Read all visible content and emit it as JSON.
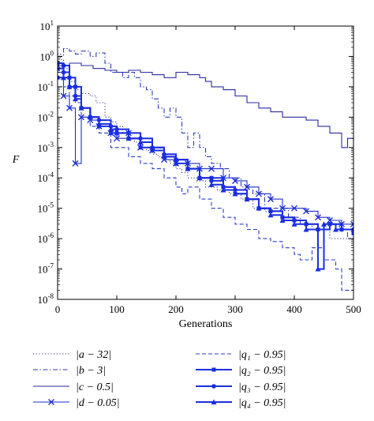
{
  "chart_data": {
    "type": "line",
    "title": "",
    "xlabel": "Generations",
    "ylabel": "F",
    "xlim": [
      0,
      500
    ],
    "ylim": [
      1e-08,
      10
    ],
    "yscale": "log",
    "x_ticks": [
      "0",
      "100",
      "200",
      "300",
      "400",
      "500"
    ],
    "y_ticks": [
      {
        "base": "10",
        "exp": "1"
      },
      {
        "base": "10",
        "exp": "0"
      },
      {
        "base": "10",
        "exp": "-1"
      },
      {
        "base": "10",
        "exp": "-2"
      },
      {
        "base": "10",
        "exp": "-3"
      },
      {
        "base": "10",
        "exp": "-4"
      },
      {
        "base": "10",
        "exp": "-5"
      },
      {
        "base": "10",
        "exp": "-6"
      },
      {
        "base": "10",
        "exp": "-7"
      },
      {
        "base": "10",
        "exp": "-8"
      }
    ],
    "grid": false,
    "legend_position": "bottom",
    "series": [
      {
        "name": "|a − 32|",
        "style": "dotted",
        "marker": "none",
        "color": "#3a3a8c",
        "points": [
          [
            0,
            1.2
          ],
          [
            5,
            0.8
          ],
          [
            10,
            0.4
          ],
          [
            20,
            0.15
          ],
          [
            30,
            0.08
          ],
          [
            40,
            0.06
          ],
          [
            55,
            0.05
          ],
          [
            65,
            0.03
          ],
          [
            80,
            0.01
          ],
          [
            90,
            0.007
          ],
          [
            100,
            0.005
          ],
          [
            110,
            0.003
          ],
          [
            120,
            0.002
          ],
          [
            130,
            0.0015
          ],
          [
            140,
            0.001
          ],
          [
            150,
            0.0008
          ],
          [
            160,
            0.0006
          ],
          [
            170,
            0.0005
          ],
          [
            180,
            0.0004
          ],
          [
            190,
            0.0003
          ],
          [
            200,
            0.0002
          ],
          [
            210,
            0.00015
          ],
          [
            220,
            0.0001
          ],
          [
            235,
            8e-05
          ],
          [
            250,
            5e-05
          ],
          [
            270,
            4e-05
          ],
          [
            290,
            3e-05
          ],
          [
            310,
            2e-05
          ],
          [
            330,
            1e-05
          ],
          [
            350,
            8e-06
          ],
          [
            380,
            5e-06
          ],
          [
            400,
            3e-06
          ],
          [
            420,
            2e-06
          ],
          [
            440,
            2e-06
          ],
          [
            460,
            1e-06
          ],
          [
            480,
            1e-06
          ],
          [
            500,
            1e-06
          ]
        ]
      },
      {
        "name": "|b − 3|",
        "style": "dashdot",
        "marker": "none",
        "color": "#2e3fae",
        "points": [
          [
            0,
            1.0
          ],
          [
            10,
            1.8
          ],
          [
            20,
            1.5
          ],
          [
            30,
            1.2
          ],
          [
            40,
            1.5
          ],
          [
            55,
            1.0
          ],
          [
            65,
            1.3
          ],
          [
            80,
            0.6
          ],
          [
            90,
            0.3
          ],
          [
            100,
            0.3
          ],
          [
            110,
            0.2
          ],
          [
            120,
            0.3
          ],
          [
            130,
            0.2
          ],
          [
            140,
            0.1
          ],
          [
            150,
            0.08
          ],
          [
            160,
            0.04
          ],
          [
            170,
            0.02
          ],
          [
            180,
            0.01
          ],
          [
            190,
            0.02
          ],
          [
            200,
            0.01
          ],
          [
            210,
            0.003
          ],
          [
            220,
            0.001
          ],
          [
            230,
            0.003
          ],
          [
            240,
            0.001
          ],
          [
            250,
            0.0005
          ],
          [
            260,
            0.0003
          ],
          [
            275,
            0.0002
          ],
          [
            290,
            0.0001
          ],
          [
            300,
            0.0001
          ],
          [
            310,
            5e-05
          ],
          [
            330,
            3e-05
          ],
          [
            350,
            1e-05
          ],
          [
            370,
            1e-05
          ],
          [
            390,
            5e-06
          ],
          [
            410,
            3e-06
          ],
          [
            430,
            2e-06
          ],
          [
            450,
            3e-06
          ],
          [
            470,
            2e-06
          ],
          [
            490,
            1e-06
          ],
          [
            500,
            1e-06
          ]
        ]
      },
      {
        "name": "|c − 0.5|",
        "style": "solid",
        "marker": "none",
        "color": "#2a2aa0",
        "points": [
          [
            0,
            0.5
          ],
          [
            20,
            0.6
          ],
          [
            40,
            0.5
          ],
          [
            60,
            0.4
          ],
          [
            80,
            0.35
          ],
          [
            100,
            0.3
          ],
          [
            120,
            0.35
          ],
          [
            140,
            0.3
          ],
          [
            160,
            0.25
          ],
          [
            180,
            0.2
          ],
          [
            200,
            0.3
          ],
          [
            220,
            0.25
          ],
          [
            240,
            0.2
          ],
          [
            250,
            0.15
          ],
          [
            260,
            0.1
          ],
          [
            280,
            0.08
          ],
          [
            300,
            0.05
          ],
          [
            320,
            0.03
          ],
          [
            340,
            0.02
          ],
          [
            360,
            0.015
          ],
          [
            380,
            0.01
          ],
          [
            400,
            0.01
          ],
          [
            420,
            0.008
          ],
          [
            440,
            0.005
          ],
          [
            460,
            0.003
          ],
          [
            480,
            0.001
          ],
          [
            490,
            0.002
          ],
          [
            500,
            0.0005
          ]
        ]
      },
      {
        "name": "|d − 0.05|",
        "style": "solid",
        "marker": "x",
        "color": "#1f2fd0",
        "points": [
          [
            0,
            0.5
          ],
          [
            10,
            0.05
          ],
          [
            20,
            0.02
          ],
          [
            30,
            0.0003
          ],
          [
            40,
            0.01
          ],
          [
            55,
            0.008
          ],
          [
            70,
            0.005
          ],
          [
            90,
            0.003
          ],
          [
            100,
            0.002
          ],
          [
            120,
            0.003
          ],
          [
            140,
            0.001
          ],
          [
            160,
            0.0008
          ],
          [
            180,
            0.0004
          ],
          [
            200,
            0.0003
          ],
          [
            220,
            0.0003
          ],
          [
            240,
            0.0002
          ],
          [
            260,
            0.0002
          ],
          [
            280,
            0.0001
          ],
          [
            300,
            8e-05
          ],
          [
            320,
            5e-05
          ],
          [
            340,
            3e-05
          ],
          [
            360,
            2e-05
          ],
          [
            380,
            1e-05
          ],
          [
            400,
            1e-05
          ],
          [
            420,
            8e-06
          ],
          [
            440,
            5e-06
          ],
          [
            460,
            4e-06
          ],
          [
            480,
            3e-06
          ],
          [
            500,
            3e-06
          ]
        ]
      },
      {
        "name": "|q₁ − 0.95|",
        "style": "dashed",
        "marker": "none",
        "color": "#2a3cc8",
        "points": [
          [
            0,
            0.3
          ],
          [
            10,
            0.1
          ],
          [
            20,
            0.05
          ],
          [
            30,
            0.03
          ],
          [
            40,
            0.01
          ],
          [
            55,
            0.005
          ],
          [
            70,
            0.003
          ],
          [
            90,
            0.001
          ],
          [
            100,
            0.001
          ],
          [
            120,
            0.0005
          ],
          [
            140,
            0.0003
          ],
          [
            160,
            0.0002
          ],
          [
            180,
            0.0001
          ],
          [
            200,
            5e-05
          ],
          [
            210,
            3e-05
          ],
          [
            220,
            5e-05
          ],
          [
            240,
            2e-05
          ],
          [
            260,
            1e-05
          ],
          [
            280,
            5e-06
          ],
          [
            300,
            3e-06
          ],
          [
            320,
            2e-06
          ],
          [
            340,
            1e-06
          ],
          [
            360,
            8e-07
          ],
          [
            380,
            5e-07
          ],
          [
            400,
            3e-07
          ],
          [
            410,
            2e-07
          ],
          [
            430,
            5e-07
          ],
          [
            450,
            2e-07
          ],
          [
            470,
            1e-07
          ],
          [
            480,
            2e-08
          ],
          [
            500,
            2e-08
          ]
        ]
      },
      {
        "name": "|q₂ − 0.95|",
        "style": "solid",
        "marker": "square",
        "color": "#1a2ee0",
        "points": [
          [
            0,
            0.2
          ],
          [
            10,
            0.5
          ],
          [
            20,
            0.2
          ],
          [
            30,
            0.1
          ],
          [
            40,
            0.02
          ],
          [
            55,
            0.01
          ],
          [
            70,
            0.005
          ],
          [
            90,
            0.003
          ],
          [
            100,
            0.003
          ],
          [
            120,
            0.002
          ],
          [
            140,
            0.001
          ],
          [
            160,
            0.0008
          ],
          [
            180,
            0.0005
          ],
          [
            200,
            0.0004
          ],
          [
            220,
            0.0002
          ],
          [
            240,
            0.0001
          ],
          [
            260,
            0.0001
          ],
          [
            280,
            5e-05
          ],
          [
            300,
            3e-05
          ],
          [
            320,
            2e-05
          ],
          [
            340,
            1e-05
          ],
          [
            360,
            8e-06
          ],
          [
            380,
            5e-06
          ],
          [
            400,
            4e-06
          ],
          [
            420,
            3e-06
          ],
          [
            440,
            2e-06
          ],
          [
            460,
            3e-06
          ],
          [
            480,
            2e-06
          ],
          [
            500,
            1.5e-06
          ]
        ]
      },
      {
        "name": "|q₃ − 0.95|",
        "style": "solid",
        "marker": "circle",
        "color": "#1a2ee0",
        "points": [
          [
            0,
            0.6
          ],
          [
            10,
            0.3
          ],
          [
            20,
            0.1
          ],
          [
            30,
            0.05
          ],
          [
            40,
            0.02
          ],
          [
            55,
            0.01
          ],
          [
            70,
            0.008
          ],
          [
            90,
            0.005
          ],
          [
            100,
            0.004
          ],
          [
            120,
            0.003
          ],
          [
            140,
            0.002
          ],
          [
            160,
            0.001
          ],
          [
            180,
            0.0006
          ],
          [
            200,
            0.0004
          ],
          [
            220,
            0.0002
          ],
          [
            240,
            0.0001
          ],
          [
            260,
            8e-05
          ],
          [
            280,
            5e-05
          ],
          [
            300,
            4e-05
          ],
          [
            320,
            2e-05
          ],
          [
            340,
            1e-05
          ],
          [
            360,
            8e-06
          ],
          [
            380,
            5e-06
          ],
          [
            400,
            4e-06
          ],
          [
            420,
            3e-06
          ],
          [
            440,
            2e-06
          ],
          [
            460,
            3e-06
          ],
          [
            480,
            2e-06
          ],
          [
            500,
            2e-06
          ]
        ]
      },
      {
        "name": "|q₄ − 0.95|",
        "style": "solid",
        "marker": "triangle",
        "color": "#1a2ee0",
        "points": [
          [
            0,
            0.4
          ],
          [
            10,
            0.2
          ],
          [
            20,
            0.1
          ],
          [
            30,
            0.04
          ],
          [
            40,
            0.02
          ],
          [
            55,
            0.01
          ],
          [
            70,
            0.006
          ],
          [
            90,
            0.004
          ],
          [
            100,
            0.003
          ],
          [
            120,
            0.002
          ],
          [
            140,
            0.0015
          ],
          [
            160,
            0.001
          ],
          [
            180,
            0.0005
          ],
          [
            200,
            0.0003
          ],
          [
            220,
            0.0002
          ],
          [
            240,
            0.0001
          ],
          [
            260,
            6e-05
          ],
          [
            280,
            4e-05
          ],
          [
            300,
            3e-05
          ],
          [
            320,
            2e-05
          ],
          [
            340,
            1e-05
          ],
          [
            360,
            6e-06
          ],
          [
            380,
            4e-06
          ],
          [
            400,
            3e-06
          ],
          [
            420,
            2e-06
          ],
          [
            440,
            1e-07
          ],
          [
            450,
            3e-06
          ],
          [
            470,
            2e-06
          ],
          [
            500,
            2e-06
          ]
        ]
      }
    ]
  }
}
